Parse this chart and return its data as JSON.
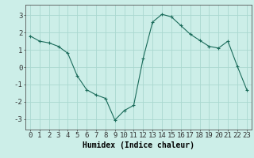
{
  "x": [
    0,
    1,
    2,
    3,
    4,
    5,
    6,
    7,
    8,
    9,
    10,
    11,
    12,
    13,
    14,
    15,
    16,
    17,
    18,
    19,
    20,
    21,
    22,
    23
  ],
  "y": [
    1.8,
    1.5,
    1.4,
    1.2,
    0.8,
    -0.5,
    -1.3,
    -1.6,
    -1.8,
    -3.05,
    -2.5,
    -2.2,
    0.5,
    2.6,
    3.05,
    2.9,
    2.4,
    1.9,
    1.55,
    1.2,
    1.1,
    1.5,
    0.05,
    -1.3
  ],
  "line_color": "#1a6b5a",
  "marker": "+",
  "marker_size": 3,
  "bg_color": "#cceee8",
  "grid_color": "#aad8d0",
  "xlabel": "Humidex (Indice chaleur)",
  "xlabel_fontsize": 7,
  "ylabel_ticks": [
    -3,
    -2,
    -1,
    0,
    1,
    2,
    3
  ],
  "xlim": [
    -0.5,
    23.5
  ],
  "ylim": [
    -3.6,
    3.6
  ],
  "tick_fontsize": 6.5
}
